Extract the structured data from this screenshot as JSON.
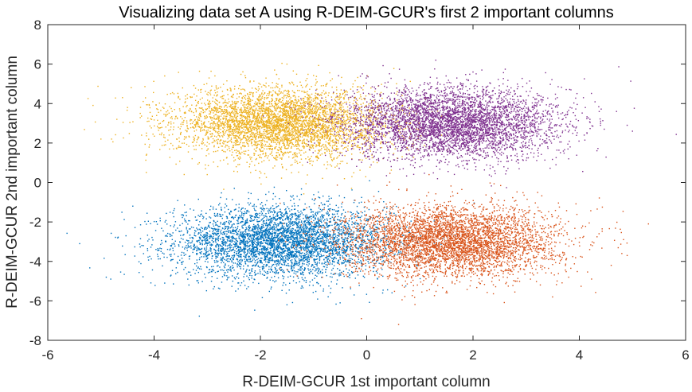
{
  "chart_data": {
    "type": "scatter",
    "title": "Visualizing data set A using R-DEIM-GCUR's first 2 important columns",
    "xlabel": "R-DEIM-GCUR 1st important column",
    "ylabel": "R-DEIM-GCUR 2nd important column",
    "xlim": [
      -6,
      6
    ],
    "ylim": [
      -8,
      8
    ],
    "xticks": [
      "-6",
      "-4",
      "-2",
      "0",
      "2",
      "4",
      "6"
    ],
    "yticks": [
      "-8",
      "-6",
      "-4",
      "-2",
      "0",
      "2",
      "4",
      "6",
      "8"
    ],
    "grid": false,
    "legend": "none",
    "series": [
      {
        "color": "#0072bd",
        "n_points": 4500,
        "center": [
          -1.6,
          -3.0
        ],
        "spread": [
          1.0,
          0.9
        ],
        "points": [
          [
            -5.4,
            -3.1
          ],
          [
            -4.9,
            -4.8
          ],
          [
            -4.4,
            -1.2
          ],
          [
            -4.2,
            -3.2
          ],
          [
            -3.8,
            -5.1
          ],
          [
            -1.5,
            -6.2
          ],
          [
            -0.5,
            -6.1
          ],
          [
            0.3,
            -5.6
          ],
          [
            -0.1,
            -1.0
          ]
        ]
      },
      {
        "color": "#d95319",
        "n_points": 4500,
        "center": [
          1.6,
          -3.0
        ],
        "spread": [
          1.0,
          0.9
        ],
        "points": [
          [
            4.6,
            -4.2
          ],
          [
            4.8,
            -3.6
          ],
          [
            4.9,
            -3.7
          ],
          [
            5.3,
            -2.1
          ],
          [
            0.6,
            -7.2
          ],
          [
            -0.1,
            -6.9
          ],
          [
            3.8,
            -4.8
          ],
          [
            0.5,
            -1.2
          ]
        ]
      },
      {
        "color": "#edb120",
        "n_points": 4500,
        "center": [
          -1.6,
          3.0
        ],
        "spread": [
          1.0,
          0.9
        ],
        "points": [
          [
            -4.5,
            3.8
          ],
          [
            -4.7,
            3.2
          ],
          [
            -5.0,
            2.2
          ],
          [
            -3.8,
            5.4
          ],
          [
            -1.5,
            6.0
          ],
          [
            -3.0,
            0.4
          ],
          [
            -0.8,
            0.9
          ],
          [
            -4.8,
            2.2
          ]
        ]
      },
      {
        "color": "#7e2f8e",
        "n_points": 4500,
        "center": [
          1.6,
          3.0
        ],
        "spread": [
          1.0,
          0.9
        ],
        "points": [
          [
            4.2,
            3.2
          ],
          [
            4.7,
            3.6
          ],
          [
            4.4,
            3.0
          ],
          [
            4.9,
            2.9
          ],
          [
            5.0,
            2.6
          ],
          [
            3.8,
            1.2
          ],
          [
            1.3,
            6.2
          ],
          [
            2.0,
            5.6
          ],
          [
            1.0,
            0.8
          ]
        ]
      }
    ]
  }
}
